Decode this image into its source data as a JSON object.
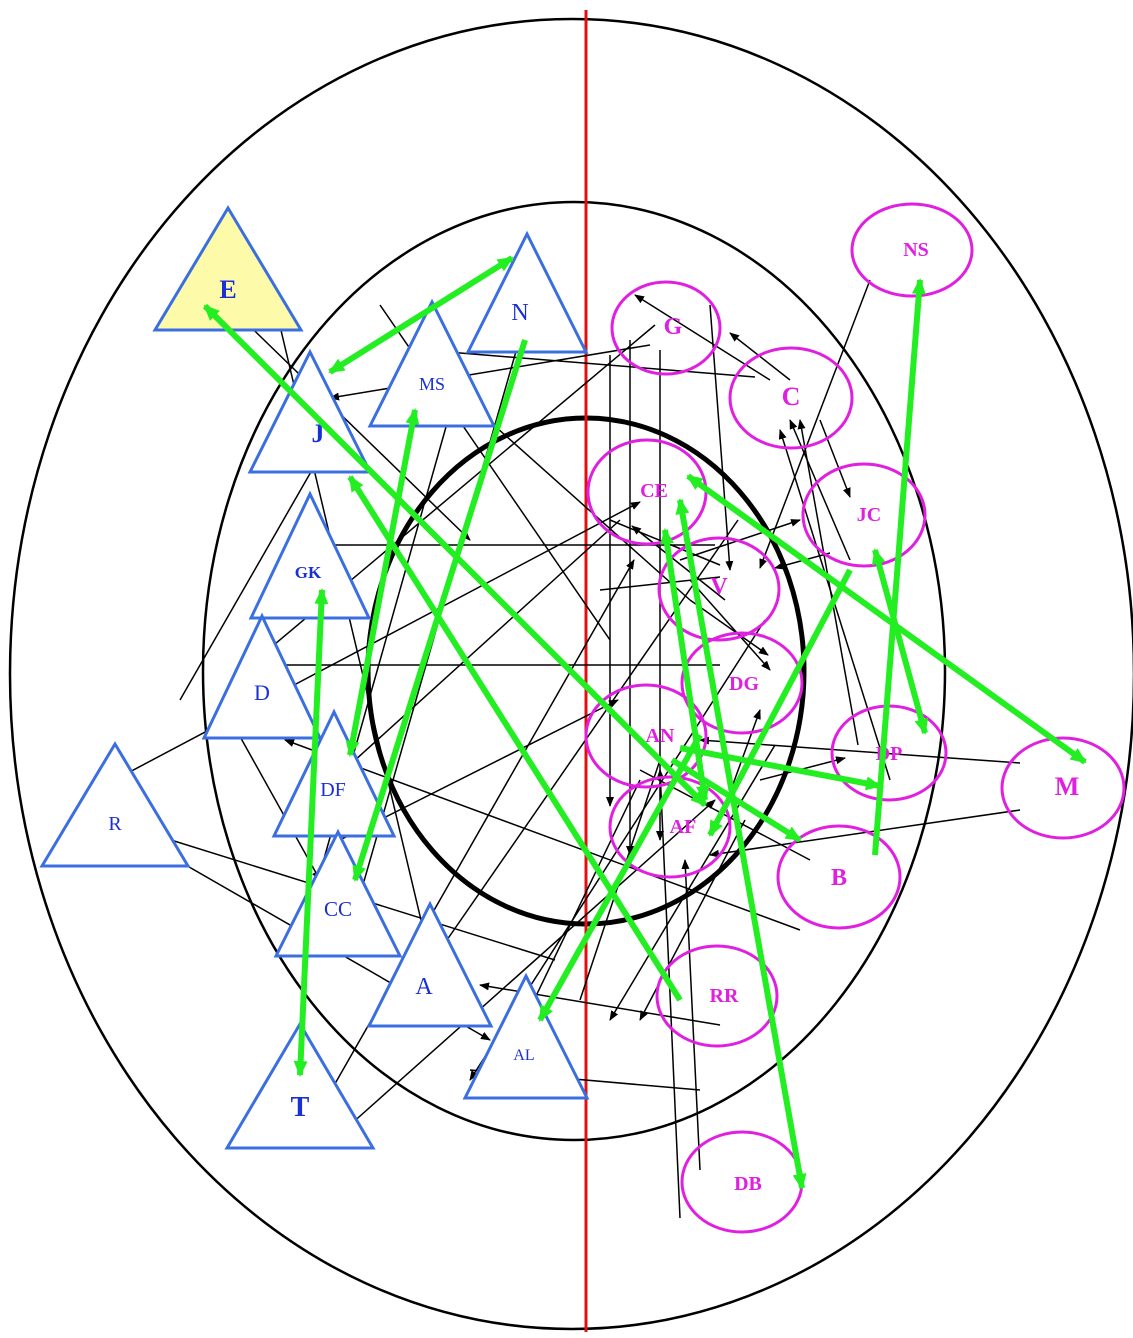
{
  "colors": {
    "triangle_stroke": "#3b6fe0",
    "triangle_label": "#1a2fd6",
    "highlight_fill": "#fdfbaa",
    "ellipse_stroke": "#e020e0",
    "ellipse_label": "#e020e0",
    "divider": "#e01010",
    "green_arrow": "#22ee22",
    "black_arrow": "#000000"
  },
  "triangles": [
    {
      "id": "E",
      "label": "E"
    },
    {
      "id": "N",
      "label": "N"
    },
    {
      "id": "MS",
      "label": "MS"
    },
    {
      "id": "J",
      "label": "J"
    },
    {
      "id": "GK",
      "label": "GK"
    },
    {
      "id": "D",
      "label": "D"
    },
    {
      "id": "R",
      "label": "R"
    },
    {
      "id": "DF",
      "label": "DF"
    },
    {
      "id": "CC",
      "label": "CC"
    },
    {
      "id": "A",
      "label": "A"
    },
    {
      "id": "AL",
      "label": "AL"
    },
    {
      "id": "T",
      "label": "T"
    }
  ],
  "ellipses": [
    {
      "id": "NS",
      "label": "NS"
    },
    {
      "id": "G",
      "label": "G"
    },
    {
      "id": "C",
      "label": "C"
    },
    {
      "id": "CE",
      "label": "CE"
    },
    {
      "id": "JC",
      "label": "JC"
    },
    {
      "id": "V",
      "label": "V"
    },
    {
      "id": "DG",
      "label": "DG"
    },
    {
      "id": "AN",
      "label": "AN"
    },
    {
      "id": "DP",
      "label": "DP"
    },
    {
      "id": "M",
      "label": "M"
    },
    {
      "id": "AF",
      "label": "AF"
    },
    {
      "id": "B",
      "label": "B"
    },
    {
      "id": "RR",
      "label": "RR"
    },
    {
      "id": "DB",
      "label": "DB"
    }
  ]
}
